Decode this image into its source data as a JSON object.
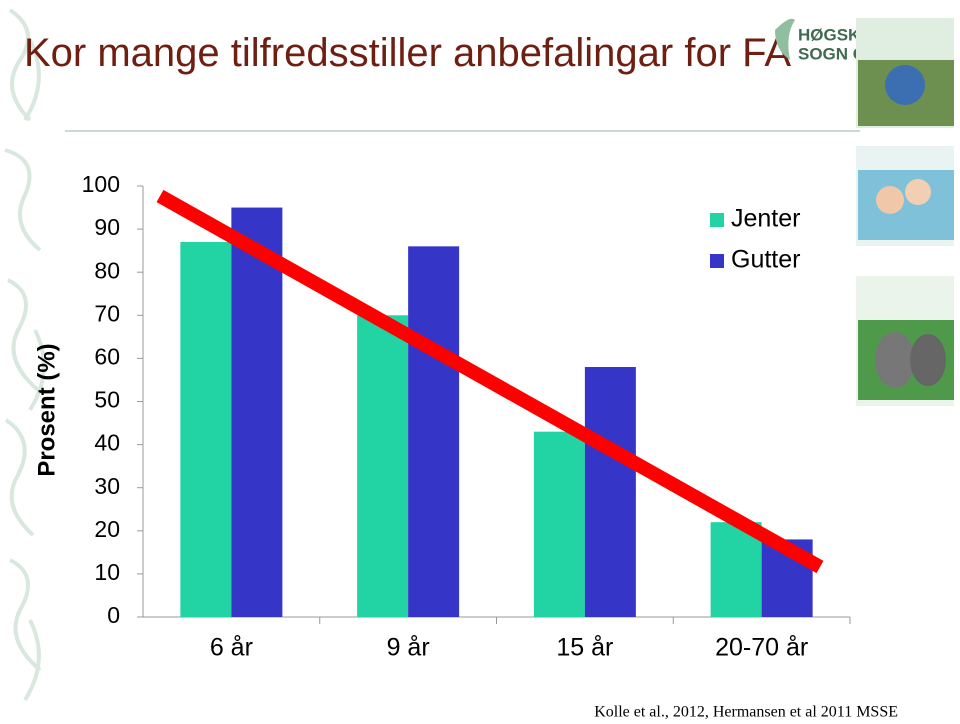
{
  "title": "Kor mange tilfredsstiller anbefalingar for FA",
  "logo": {
    "line1": "HØGSKU",
    "line2": "SOGN OG"
  },
  "source": "Kolle et al., 2012, Hermansen et al 2011 MSSE",
  "chart_data": {
    "type": "bar",
    "y_label": "Prosent (%)",
    "categories": [
      "6 år",
      "9 år",
      "15 år",
      "20-70 år"
    ],
    "series": [
      {
        "name": "Jenter",
        "color": "#22d3a3",
        "values": [
          87,
          70,
          43,
          22
        ]
      },
      {
        "name": "Gutter",
        "color": "#3535c8",
        "values": [
          95,
          86,
          58,
          18
        ]
      }
    ],
    "ylim": [
      0,
      100
    ],
    "yticks": [
      0,
      10,
      20,
      30,
      40,
      50,
      60,
      70,
      80,
      90,
      100
    ],
    "grid": false,
    "legend": "upper right"
  }
}
